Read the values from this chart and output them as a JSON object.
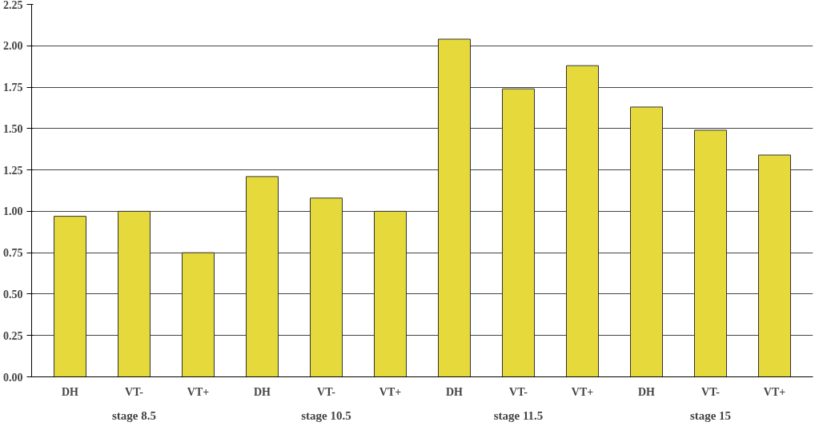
{
  "chart_data": {
    "type": "bar",
    "categories": [
      "DH",
      "VT-",
      "VT+",
      "DH",
      "VT-",
      "VT+",
      "DH",
      "VT-",
      "VT+",
      "DH",
      "VT-",
      "VT+"
    ],
    "values": [
      0.97,
      1.0,
      0.75,
      1.21,
      1.08,
      1.0,
      2.04,
      1.74,
      1.88,
      1.63,
      1.49,
      1.34
    ],
    "color": "#e6d93c",
    "ylim": [
      0,
      2.25
    ],
    "yticks": [
      {
        "value": 0,
        "label": "0.00"
      },
      0.25,
      {
        "value": 0.5,
        "label": "0.50"
      },
      0.75,
      {
        "value": 1,
        "label": "1.00"
      },
      1.25,
      {
        "value": 1.5,
        "label": "1.50"
      },
      1.75,
      {
        "value": 2,
        "label": "2.00"
      },
      2.25
    ],
    "grid": "y",
    "annotations": [
      "stage 8.5",
      "stage 10.5",
      "stage 11.5",
      "stage 15"
    ]
  }
}
